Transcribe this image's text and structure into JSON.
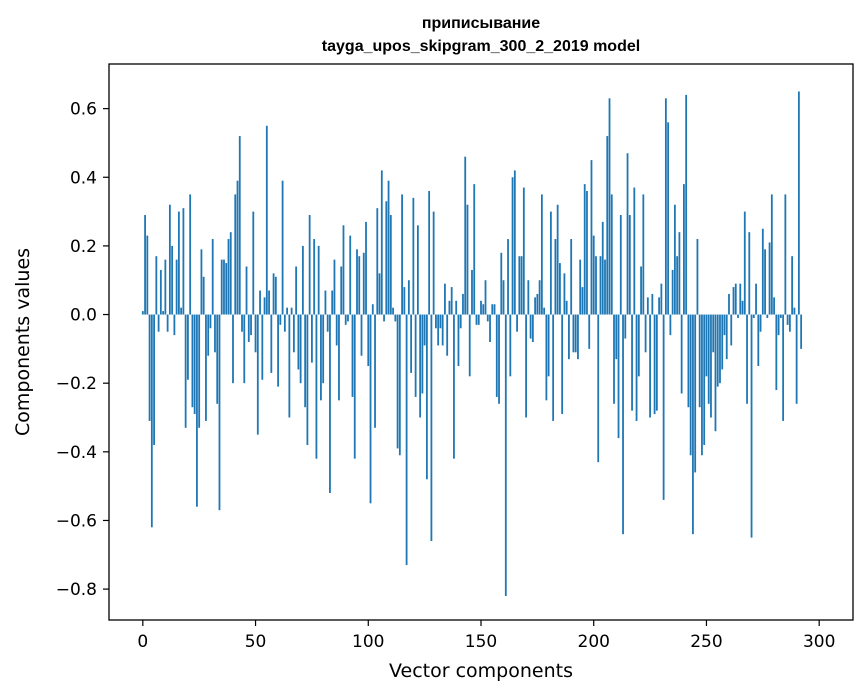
{
  "chart_data": {
    "type": "bar",
    "title_line1": "приписывание",
    "title_line2": "tayga_upos_skipgram_300_2_2019 model",
    "xlabel": "Vector components",
    "ylabel": "Components values",
    "xlim": [
      -15,
      315
    ],
    "ylim": [
      -0.89,
      0.73
    ],
    "xticks": [
      0,
      50,
      100,
      150,
      200,
      250,
      300
    ],
    "xtick_labels": [
      "0",
      "50",
      "100",
      "150",
      "200",
      "250",
      "300"
    ],
    "yticks": [
      -0.8,
      -0.6,
      -0.4,
      -0.2,
      0.0,
      0.2,
      0.4,
      0.6
    ],
    "ytick_labels": [
      "−0.8",
      "−0.6",
      "−0.4",
      "−0.2",
      "0.0",
      "0.2",
      "0.4",
      "0.6"
    ],
    "bar_color": "#1f77b4",
    "values": [
      0.01,
      0.29,
      0.23,
      -0.31,
      -0.62,
      -0.38,
      0.17,
      -0.05,
      0.13,
      0.01,
      0.16,
      -0.05,
      0.32,
      0.2,
      -0.06,
      0.16,
      0.3,
      0.02,
      0.31,
      -0.33,
      -0.19,
      0.35,
      -0.27,
      -0.29,
      -0.56,
      -0.33,
      0.19,
      0.11,
      -0.31,
      -0.12,
      -0.04,
      0.22,
      -0.11,
      -0.26,
      -0.57,
      0.16,
      0.16,
      0.15,
      0.22,
      0.24,
      -0.2,
      0.35,
      0.39,
      0.52,
      -0.05,
      -0.2,
      0.14,
      -0.08,
      -0.06,
      0.3,
      -0.11,
      -0.35,
      0.07,
      -0.19,
      0.05,
      0.55,
      0.07,
      -0.17,
      0.12,
      0.11,
      -0.21,
      -0.03,
      0.39,
      -0.05,
      0.02,
      -0.3,
      0.02,
      -0.11,
      0.14,
      -0.16,
      -0.2,
      0.2,
      -0.27,
      -0.38,
      0.29,
      -0.14,
      0.22,
      -0.42,
      0.2,
      -0.25,
      -0.2,
      0.07,
      -0.05,
      -0.52,
      0.07,
      0.16,
      -0.09,
      -0.25,
      0.14,
      0.26,
      -0.03,
      -0.02,
      0.23,
      -0.24,
      -0.42,
      0.19,
      0.17,
      -0.12,
      0.18,
      0.27,
      -0.15,
      -0.55,
      0.03,
      -0.33,
      0.31,
      0.12,
      0.42,
      -0.02,
      0.33,
      0.39,
      0.29,
      0.02,
      -0.02,
      -0.39,
      -0.41,
      0.35,
      0.08,
      -0.73,
      0.1,
      -0.17,
      0.34,
      -0.24,
      0.26,
      -0.3,
      -0.23,
      -0.09,
      -0.48,
      0.36,
      -0.66,
      0.3,
      -0.04,
      -0.09,
      -0.04,
      -0.09,
      0.09,
      -0.12,
      0.04,
      0.08,
      -0.42,
      0.04,
      -0.15,
      -0.04,
      0.06,
      0.46,
      0.32,
      -0.18,
      0.13,
      0.38,
      -0.03,
      -0.03,
      0.04,
      0.03,
      0.1,
      -0.02,
      -0.08,
      0.03,
      0.03,
      -0.24,
      -0.26,
      0.18,
      0.1,
      -0.82,
      0.22,
      -0.18,
      0.4,
      0.42,
      -0.05,
      0.17,
      0.17,
      0.37,
      -0.3,
      0.1,
      -0.07,
      -0.08,
      0.05,
      0.06,
      0.1,
      0.35,
      0.02,
      -0.25,
      -0.18,
      0.3,
      -0.31,
      0.22,
      0.32,
      0.15,
      -0.29,
      0.12,
      0.04,
      -0.13,
      0.22,
      -0.11,
      -0.11,
      -0.13,
      0.16,
      0.08,
      0.38,
      0.36,
      -0.1,
      0.45,
      0.23,
      0.17,
      -0.43,
      0.17,
      0.27,
      0.16,
      0.52,
      0.63,
      0.35,
      -0.26,
      -0.13,
      -0.36,
      0.29,
      -0.64,
      -0.07,
      0.47,
      0.29,
      -0.28,
      0.37,
      -0.31,
      -0.18,
      0.14,
      0.35,
      -0.11,
      0.05,
      -0.3,
      0.06,
      -0.29,
      -0.28,
      0.05,
      0.09,
      -0.54,
      0.63,
      0.56,
      -0.06,
      0.13,
      0.32,
      0.17,
      0.24,
      -0.23,
      0.38,
      0.64,
      -0.27,
      -0.41,
      -0.64,
      -0.46,
      0.22,
      -0.27,
      -0.41,
      -0.38,
      -0.18,
      -0.26,
      -0.3,
      -0.11,
      -0.34,
      -0.21,
      -0.2,
      -0.16,
      -0.06,
      -0.13,
      0.06,
      -0.09,
      0.08,
      0.09,
      -0.01,
      0.09,
      0.04,
      0.3,
      -0.26,
      0.24,
      -0.65,
      -0.01,
      0.09,
      -0.15,
      -0.05,
      0.25,
      0.19,
      -0.01,
      0.21,
      0.35,
      0.05,
      -0.22,
      -0.06,
      -0.01,
      -0.31,
      0.35,
      -0.03,
      -0.05,
      0.17,
      0.02,
      -0.26,
      0.65,
      -0.1
    ]
  }
}
